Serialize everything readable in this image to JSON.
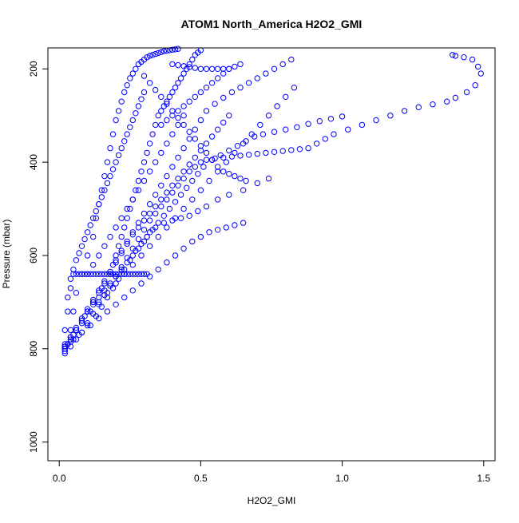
{
  "chart_data": {
    "type": "scatter",
    "title": "ATOM1 North_America H2O2_GMI",
    "xlabel": "H2O2_GMI",
    "ylabel": "Pressure (mbar)",
    "xlim": [
      -0.04,
      1.54
    ],
    "ylim": [
      1040,
      155
    ],
    "y_reversed": true,
    "x_ticks": [
      0.0,
      0.5,
      1.0,
      1.5
    ],
    "x_tick_labels": [
      "0.0",
      "0.5",
      "1.0",
      "1.5"
    ],
    "y_ticks": [
      200,
      400,
      600,
      800,
      1000
    ],
    "y_tick_labels": [
      "200",
      "400",
      "600",
      "800",
      "1000"
    ],
    "grid": false,
    "legend": "none",
    "marker": "open-circle",
    "color": "#0000ff",
    "series": [
      {
        "x": [
          0.02,
          0.03,
          0.04,
          0.06,
          0.08,
          0.1,
          0.12,
          0.14,
          0.16,
          0.18,
          0.2,
          0.22,
          0.24,
          0.26,
          0.28,
          0.3,
          0.31,
          0.32,
          0.34,
          0.37,
          0.4,
          0.43,
          0.46,
          0.49,
          0.52,
          0.56,
          0.6,
          0.65,
          0.7,
          0.74
        ],
        "y": [
          800,
          790,
          775,
          760,
          740,
          720,
          705,
          690,
          675,
          660,
          645,
          630,
          615,
          600,
          585,
          570,
          560,
          550,
          540,
          530,
          525,
          520,
          515,
          505,
          495,
          480,
          470,
          460,
          445,
          435
        ]
      },
      {
        "x": [
          0.02,
          0.04,
          0.07,
          0.1,
          0.13,
          0.15,
          0.17,
          0.19,
          0.21,
          0.23,
          0.25,
          0.27,
          0.29,
          0.31,
          0.33,
          0.35,
          0.37,
          0.39,
          0.41,
          0.43,
          0.45,
          0.47,
          0.49,
          0.51,
          0.54,
          0.57,
          0.6,
          0.63,
          0.66,
          0.69,
          0.72,
          0.76,
          0.8,
          0.84,
          0.88,
          0.92,
          0.96,
          1.0
        ],
        "y": [
          795,
          785,
          770,
          750,
          730,
          710,
          690,
          670,
          650,
          630,
          610,
          590,
          575,
          560,
          545,
          530,
          515,
          500,
          485,
          470,
          455,
          440,
          425,
          410,
          395,
          385,
          375,
          365,
          355,
          345,
          340,
          335,
          330,
          325,
          318,
          312,
          307,
          302
        ]
      },
      {
        "x": [
          0.02,
          0.04,
          0.06,
          0.08,
          0.1,
          0.12,
          0.14,
          0.16,
          0.18,
          0.2,
          0.22,
          0.24,
          0.26,
          0.28,
          0.3,
          0.32,
          0.34,
          0.36,
          0.38,
          0.4,
          0.42,
          0.44,
          0.46,
          0.48,
          0.5,
          0.52,
          0.55,
          0.58,
          0.61,
          0.64,
          0.67,
          0.7,
          0.73,
          0.76,
          0.79,
          0.82,
          0.85,
          0.88,
          0.91,
          0.94,
          0.97,
          1.02,
          1.07,
          1.12,
          1.17,
          1.22,
          1.27,
          1.32,
          1.37,
          1.4,
          1.44,
          1.47,
          1.49,
          1.48,
          1.46,
          1.43,
          1.4,
          1.39
        ],
        "y": [
          805,
          795,
          780,
          765,
          745,
          725,
          705,
          685,
          665,
          645,
          625,
          605,
          585,
          565,
          545,
          525,
          510,
          495,
          480,
          465,
          450,
          435,
          420,
          410,
          400,
          395,
          392,
          390,
          388,
          386,
          384,
          382,
          380,
          378,
          376,
          374,
          372,
          370,
          360,
          350,
          340,
          330,
          320,
          310,
          300,
          290,
          282,
          276,
          270,
          262,
          250,
          235,
          210,
          195,
          180,
          175,
          172,
          170
        ]
      },
      {
        "x": [
          0.02,
          0.03,
          0.04,
          0.05,
          0.06,
          0.08,
          0.1,
          0.12,
          0.13,
          0.14,
          0.15,
          0.16,
          0.17,
          0.18,
          0.19,
          0.2,
          0.21,
          0.22,
          0.23,
          0.24,
          0.25,
          0.26,
          0.27,
          0.28,
          0.29,
          0.3,
          0.31,
          0.32,
          0.33,
          0.34,
          0.35,
          0.36,
          0.37,
          0.38,
          0.39,
          0.4,
          0.41,
          0.42
        ],
        "y": [
          810,
          790,
          760,
          720,
          680,
          640,
          600,
          560,
          520,
          490,
          460,
          430,
          400,
          370,
          340,
          310,
          290,
          270,
          250,
          235,
          220,
          210,
          200,
          190,
          185,
          180,
          175,
          172,
          170,
          168,
          166,
          164,
          162,
          161,
          160,
          159,
          158,
          157
        ]
      },
      {
        "x": [
          0.02,
          0.04,
          0.06,
          0.08,
          0.1,
          0.12,
          0.14,
          0.16,
          0.18,
          0.2,
          0.22,
          0.24,
          0.26,
          0.28,
          0.3,
          0.32,
          0.34,
          0.36,
          0.38,
          0.4,
          0.42,
          0.44,
          0.46,
          0.48,
          0.5,
          0.52,
          0.54,
          0.56,
          0.58,
          0.6
        ],
        "y": [
          790,
          775,
          755,
          735,
          715,
          695,
          675,
          655,
          635,
          615,
          595,
          575,
          555,
          540,
          525,
          510,
          495,
          480,
          465,
          450,
          435,
          420,
          405,
          390,
          375,
          360,
          345,
          330,
          315,
          300
        ]
      },
      {
        "x": [
          0.02,
          0.05,
          0.08,
          0.11,
          0.14,
          0.17,
          0.2,
          0.23,
          0.26,
          0.29,
          0.32,
          0.35,
          0.38,
          0.41,
          0.44,
          0.47,
          0.5,
          0.53,
          0.56,
          0.59,
          0.62,
          0.65,
          0.68,
          0.71,
          0.74,
          0.77,
          0.8,
          0.83
        ],
        "y": [
          795,
          770,
          745,
          720,
          700,
          680,
          660,
          640,
          620,
          600,
          580,
          560,
          540,
          520,
          500,
          480,
          460,
          440,
          420,
          400,
          380,
          360,
          340,
          320,
          300,
          280,
          260,
          240
        ]
      },
      {
        "x": [
          0.03,
          0.06,
          0.09,
          0.12,
          0.15,
          0.18,
          0.2,
          0.22,
          0.24,
          0.26,
          0.28,
          0.3,
          0.32,
          0.34,
          0.36,
          0.38,
          0.4,
          0.42,
          0.44,
          0.46,
          0.48,
          0.5,
          0.52,
          0.55,
          0.58,
          0.61,
          0.64,
          0.67,
          0.7,
          0.73,
          0.76,
          0.79,
          0.82
        ],
        "y": [
          790,
          760,
          730,
          700,
          670,
          640,
          610,
          590,
          570,
          550,
          530,
          510,
          490,
          470,
          450,
          430,
          410,
          390,
          370,
          350,
          330,
          310,
          290,
          275,
          262,
          250,
          240,
          230,
          220,
          210,
          200,
          190,
          180
        ]
      },
      {
        "x": [
          0.02,
          0.04,
          0.06,
          0.08,
          0.1,
          0.12,
          0.14,
          0.16,
          0.18,
          0.19,
          0.2,
          0.21,
          0.22,
          0.23,
          0.24,
          0.25,
          0.26,
          0.27,
          0.28,
          0.29,
          0.3,
          0.31,
          0.32,
          0.33,
          0.34,
          0.35,
          0.36,
          0.37,
          0.38,
          0.39,
          0.4,
          0.41,
          0.42,
          0.43,
          0.44,
          0.45,
          0.46,
          0.47,
          0.48,
          0.49,
          0.5
        ],
        "y": [
          800,
          780,
          760,
          740,
          720,
          700,
          680,
          660,
          640,
          620,
          600,
          580,
          560,
          540,
          520,
          500,
          480,
          460,
          440,
          420,
          400,
          380,
          360,
          340,
          320,
          300,
          290,
          280,
          270,
          260,
          250,
          240,
          230,
          220,
          210,
          200,
          190,
          180,
          170,
          165,
          160
        ]
      },
      {
        "x": [
          0.02,
          0.02,
          0.03,
          0.03,
          0.04,
          0.04,
          0.05,
          0.06,
          0.07,
          0.08,
          0.09,
          0.1,
          0.11,
          0.12,
          0.13,
          0.14,
          0.15,
          0.16,
          0.17,
          0.18,
          0.19,
          0.2,
          0.21,
          0.22,
          0.23,
          0.24,
          0.25,
          0.26,
          0.27,
          0.28,
          0.29,
          0.3
        ],
        "y": [
          800,
          760,
          720,
          690,
          670,
          650,
          630,
          610,
          595,
          580,
          565,
          550,
          535,
          520,
          505,
          490,
          475,
          460,
          445,
          430,
          415,
          400,
          385,
          370,
          355,
          340,
          325,
          310,
          295,
          280,
          265,
          250
        ]
      },
      {
        "x": [
          0.05,
          0.06,
          0.07,
          0.08,
          0.09,
          0.1,
          0.11,
          0.12,
          0.13,
          0.14,
          0.15,
          0.16,
          0.17,
          0.18,
          0.19,
          0.2,
          0.21,
          0.22,
          0.23,
          0.24,
          0.25,
          0.26,
          0.27,
          0.28,
          0.29,
          0.3,
          0.31
        ],
        "y": [
          640,
          640,
          640,
          640,
          640,
          640,
          640,
          640,
          640,
          640,
          640,
          640,
          640,
          640,
          640,
          640,
          640,
          640,
          640,
          640,
          640,
          640,
          640,
          640,
          640,
          640,
          640
        ]
      },
      {
        "x": [
          0.1,
          0.12,
          0.14,
          0.16,
          0.18,
          0.2,
          0.22,
          0.24,
          0.26,
          0.28,
          0.3,
          0.32,
          0.34,
          0.36,
          0.38,
          0.4,
          0.42,
          0.44
        ],
        "y": [
          640,
          620,
          600,
          580,
          560,
          540,
          520,
          500,
          480,
          460,
          440,
          420,
          400,
          380,
          360,
          340,
          320,
          300
        ]
      },
      {
        "x": [
          0.02,
          0.05,
          0.08,
          0.11,
          0.14,
          0.17,
          0.2,
          0.23,
          0.26,
          0.29,
          0.32,
          0.35,
          0.38,
          0.41,
          0.44,
          0.47,
          0.5,
          0.53,
          0.56,
          0.59,
          0.62,
          0.65
        ],
        "y": [
          795,
          780,
          765,
          750,
          735,
          720,
          705,
          690,
          675,
          660,
          645,
          630,
          615,
          600,
          585,
          570,
          560,
          550,
          545,
          540,
          535,
          530
        ]
      },
      {
        "x": [
          0.4,
          0.42,
          0.44,
          0.46,
          0.48,
          0.5,
          0.52,
          0.54,
          0.56,
          0.58,
          0.6
        ],
        "y": [
          190,
          192,
          194,
          196,
          198,
          200,
          200,
          200,
          200,
          200,
          200
        ]
      },
      {
        "x": [
          0.36,
          0.38,
          0.4,
          0.42,
          0.44,
          0.46,
          0.48,
          0.5,
          0.52,
          0.54,
          0.56,
          0.58,
          0.6,
          0.62,
          0.64
        ],
        "y": [
          320,
          310,
          300,
          290,
          280,
          270,
          260,
          250,
          240,
          230,
          220,
          210,
          200,
          195,
          190
        ]
      },
      {
        "x": [
          0.3,
          0.32,
          0.34,
          0.36,
          0.38,
          0.4,
          0.42,
          0.44,
          0.46,
          0.48,
          0.5,
          0.52,
          0.54,
          0.56,
          0.58,
          0.6,
          0.62,
          0.64,
          0.66
        ],
        "y": [
          215,
          230,
          245,
          260,
          275,
          290,
          305,
          320,
          335,
          350,
          365,
          380,
          395,
          410,
          420,
          425,
          430,
          435,
          440
        ]
      }
    ]
  }
}
